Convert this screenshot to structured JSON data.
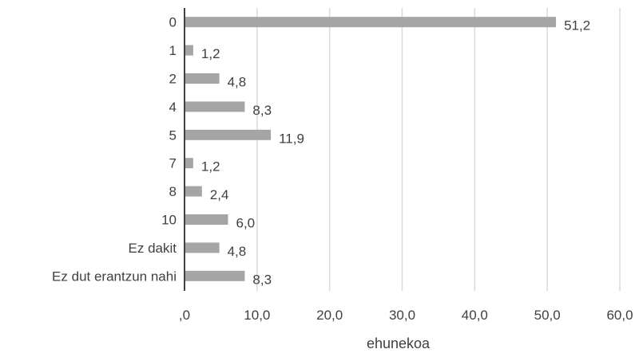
{
  "chart_data": {
    "type": "bar",
    "orientation": "horizontal",
    "categories": [
      "0",
      "1",
      "2",
      "4",
      "5",
      "7",
      "8",
      "10",
      "Ez dakit",
      "Ez dut erantzun nahi"
    ],
    "values": [
      51.2,
      1.2,
      4.8,
      8.3,
      11.9,
      1.2,
      2.4,
      6.0,
      4.8,
      8.3
    ],
    "data_labels": [
      "51,2",
      "1,2",
      "4,8",
      "8,3",
      "11,9",
      "1,2",
      "2,4",
      "6,0",
      "4,8",
      "8,3"
    ],
    "x_ticks": [
      0,
      10,
      20,
      30,
      40,
      50,
      60
    ],
    "x_tick_labels": [
      ",0",
      "10,0",
      "20,0",
      "30,0",
      "40,0",
      "50,0",
      "60,0"
    ],
    "xlim": [
      0,
      60
    ],
    "xlabel": "ehunekoa",
    "ylabel": "",
    "title": "",
    "grid": "vertical",
    "legend": "none",
    "bar_color": "#a5a5a5",
    "grid_color": "#d9d9d9",
    "axis_color": "#000000"
  }
}
